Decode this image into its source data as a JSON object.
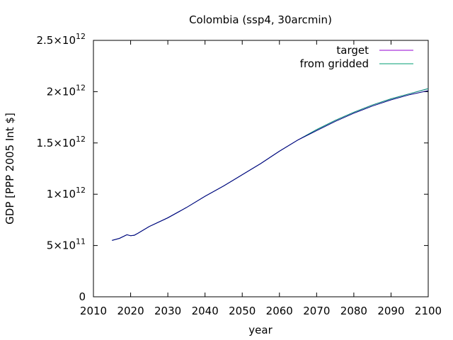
{
  "chart_data": {
    "type": "line",
    "title": "Colombia (ssp4, 30arcmin)",
    "xlabel": "year",
    "ylabel": "GDP [PPP 2005 Int $]",
    "xlim": [
      2010,
      2100
    ],
    "ylim": [
      0,
      2500000000000.0
    ],
    "x_ticks": [
      2010,
      2020,
      2030,
      2040,
      2050,
      2060,
      2070,
      2080,
      2090,
      2100
    ],
    "x_tick_labels": [
      "2010",
      "2020",
      "2030",
      "2040",
      "2050",
      "2060",
      "2070",
      "2080",
      "2090",
      "2100"
    ],
    "y_ticks": [
      0,
      500000000000.0,
      1000000000000.0,
      1500000000000.0,
      2000000000000.0,
      2500000000000.0
    ],
    "y_tick_labels": [
      {
        "mantissa": "0",
        "exp": ""
      },
      {
        "mantissa": "5×10",
        "exp": "11"
      },
      {
        "mantissa": "1×10",
        "exp": "12"
      },
      {
        "mantissa": "1.5×10",
        "exp": "12"
      },
      {
        "mantissa": "2×10",
        "exp": "12"
      },
      {
        "mantissa": "2.5×10",
        "exp": "12"
      }
    ],
    "grid": false,
    "legend_position": "top-right",
    "series": [
      {
        "name": "target",
        "color": "#9400d3",
        "x": [
          2015,
          2017,
          2019,
          2020,
          2021,
          2022,
          2025,
          2030,
          2035,
          2040,
          2045,
          2050,
          2055,
          2060,
          2065,
          2070,
          2075,
          2080,
          2085,
          2090,
          2095,
          2100
        ],
        "values": [
          550000000000.0,
          570000000000.0,
          605000000000.0,
          595000000000.0,
          600000000000.0,
          620000000000.0,
          685000000000.0,
          770000000000.0,
          870000000000.0,
          980000000000.0,
          1080000000000.0,
          1190000000000.0,
          1300000000000.0,
          1420000000000.0,
          1530000000000.0,
          1630000000000.0,
          1720000000000.0,
          1800000000000.0,
          1870000000000.0,
          1930000000000.0,
          1980000000000.0,
          2030000000000.0
        ]
      },
      {
        "name": "from gridded",
        "color": "#009e73",
        "x": [
          2015,
          2017,
          2019,
          2020,
          2021,
          2022,
          2025,
          2030,
          2035,
          2040,
          2045,
          2050,
          2055,
          2060,
          2065,
          2070,
          2075,
          2080,
          2085,
          2090,
          2095,
          2100
        ],
        "values": [
          550000000000.0,
          570000000000.0,
          605000000000.0,
          595000000000.0,
          600000000000.0,
          620000000000.0,
          685000000000.0,
          770000000000.0,
          870000000000.0,
          980000000000.0,
          1080000000000.0,
          1190000000000.0,
          1300000000000.0,
          1420000000000.0,
          1530000000000.0,
          1630000000000.0,
          1720000000000.0,
          1800000000000.0,
          1870000000000.0,
          1930000000000.0,
          1980000000000.0,
          2030000000000.0
        ]
      },
      {
        "name": "",
        "color": "#000080",
        "x": [
          2015,
          2017,
          2019,
          2020,
          2021,
          2022,
          2025,
          2030,
          2035,
          2040,
          2045,
          2050,
          2055,
          2060,
          2065,
          2070,
          2075,
          2080,
          2085,
          2090,
          2095,
          2100
        ],
        "values": [
          550000000000.0,
          570000000000.0,
          605000000000.0,
          595000000000.0,
          600000000000.0,
          620000000000.0,
          685000000000.0,
          770000000000.0,
          870000000000.0,
          980000000000.0,
          1080000000000.0,
          1190000000000.0,
          1300000000000.0,
          1420000000000.0,
          1530000000000.0,
          1620000000000.0,
          1710000000000.0,
          1790000000000.0,
          1860000000000.0,
          1920000000000.0,
          1970000000000.0,
          2010000000000.0
        ]
      }
    ]
  }
}
